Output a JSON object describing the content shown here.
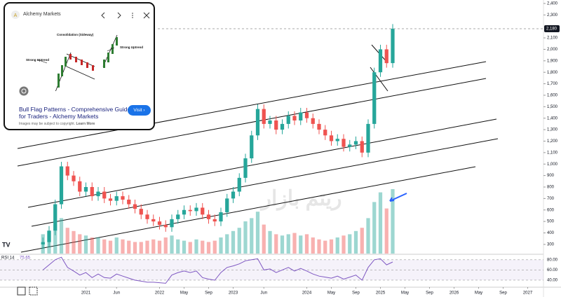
{
  "chart_data": {
    "type": "candlestick",
    "x": [
      "2020-06",
      "2020-07",
      "2020-08",
      "2020-09",
      "2020-10",
      "2020-11",
      "2020-12",
      "2021-01",
      "2021-02",
      "2021-03",
      "2021-04",
      "2021-05",
      "2021-06",
      "2021-07",
      "2021-08",
      "2021-09",
      "2021-10",
      "2021-11",
      "2021-12",
      "2022-01",
      "2022-02",
      "2022-03",
      "2022-04",
      "2022-05",
      "2022-06",
      "2022-07",
      "2022-08",
      "2022-09",
      "2022-10",
      "2022-11",
      "2022-12",
      "2023-01",
      "2023-02",
      "2023-03",
      "2023-04",
      "2023-05",
      "2023-06",
      "2023-07",
      "2023-08",
      "2023-09",
      "2023-10",
      "2023-11",
      "2023-12",
      "2024-01",
      "2024-02",
      "2024-03",
      "2024-04",
      "2024-05",
      "2024-06",
      "2024-07",
      "2024-08",
      "2024-09",
      "2024-10",
      "2024-11",
      "2024-12",
      "2025-01",
      "2025-02",
      "2025-03"
    ],
    "open": [
      300,
      320,
      420,
      650,
      980,
      900,
      850,
      760,
      800,
      720,
      760,
      700,
      680,
      720,
      690,
      650,
      610,
      560,
      520,
      500,
      470,
      450,
      520,
      560,
      600,
      590,
      620,
      560,
      520,
      500,
      580,
      700,
      760,
      880,
      1050,
      1250,
      1480,
      1350,
      1380,
      1300,
      1350,
      1420,
      1380,
      1450,
      1400,
      1350,
      1300,
      1250,
      1200,
      1220,
      1150,
      1170,
      1200,
      1100,
      1350,
      1800,
      2000,
      1880
    ],
    "high": [
      360,
      460,
      690,
      1020,
      1020,
      940,
      890,
      840,
      840,
      800,
      800,
      740,
      760,
      760,
      730,
      690,
      650,
      600,
      560,
      540,
      510,
      560,
      600,
      640,
      640,
      660,
      660,
      600,
      560,
      620,
      740,
      800,
      920,
      1090,
      1290,
      1520,
      1520,
      1420,
      1420,
      1390,
      1460,
      1460,
      1490,
      1490,
      1440,
      1390,
      1340,
      1290,
      1260,
      1260,
      1210,
      1240,
      1240,
      1390,
      1840,
      2040,
      2040,
      2220
    ],
    "low": [
      260,
      280,
      380,
      610,
      860,
      810,
      720,
      720,
      680,
      680,
      660,
      640,
      640,
      650,
      610,
      570,
      520,
      480,
      460,
      430,
      410,
      410,
      480,
      520,
      550,
      550,
      520,
      480,
      460,
      460,
      540,
      660,
      720,
      840,
      1010,
      1210,
      1310,
      1310,
      1260,
      1260,
      1310,
      1340,
      1340,
      1360,
      1310,
      1260,
      1210,
      1160,
      1160,
      1110,
      1110,
      1130,
      1060,
      1060,
      1310,
      1760,
      1840,
      1840
    ],
    "close": [
      320,
      420,
      650,
      980,
      900,
      850,
      760,
      800,
      720,
      760,
      700,
      680,
      720,
      690,
      650,
      610,
      560,
      520,
      500,
      470,
      450,
      520,
      560,
      600,
      590,
      620,
      560,
      520,
      500,
      580,
      700,
      760,
      880,
      1050,
      1250,
      1480,
      1350,
      1380,
      1300,
      1350,
      1420,
      1380,
      1450,
      1400,
      1350,
      1300,
      1250,
      1200,
      1220,
      1150,
      1170,
      1200,
      1100,
      1350,
      1800,
      2000,
      1880,
      2180
    ],
    "volume": [
      30,
      35,
      45,
      55,
      40,
      35,
      30,
      28,
      25,
      25,
      22,
      20,
      25,
      22,
      20,
      18,
      18,
      20,
      22,
      20,
      25,
      28,
      22,
      20,
      18,
      22,
      20,
      18,
      20,
      25,
      30,
      35,
      40,
      50,
      55,
      65,
      45,
      35,
      30,
      28,
      30,
      32,
      28,
      30,
      25,
      22,
      20,
      22,
      25,
      28,
      30,
      35,
      40,
      55,
      80,
      95,
      70,
      100
    ],
    "up_color": "#26a69a",
    "down_color": "#ef5350",
    "xlim": [
      "2019-11",
      "2027-03"
    ],
    "xticks": [
      {
        "value": "2021-01",
        "label": "2021"
      },
      {
        "value": "2021-06",
        "label": "Jun"
      },
      {
        "value": "2022-01",
        "label": "2022"
      },
      {
        "value": "2022-05",
        "label": "May"
      },
      {
        "value": "2022-09",
        "label": "Sep"
      },
      {
        "value": "2023-01",
        "label": "2023"
      },
      {
        "value": "2023-06",
        "label": "Jun"
      },
      {
        "value": "2024-01",
        "label": "2024"
      },
      {
        "value": "2024-05",
        "label": "May"
      },
      {
        "value": "2024-09",
        "label": "Sep"
      },
      {
        "value": "2025-01",
        "label": "2025"
      },
      {
        "value": "2025-05",
        "label": "May"
      },
      {
        "value": "2025-09",
        "label": "Sep"
      },
      {
        "value": "2026-01",
        "label": "2026"
      },
      {
        "value": "2026-05",
        "label": "May"
      },
      {
        "value": "2026-09",
        "label": "Sep"
      },
      {
        "value": "2027-01",
        "label": "2027"
      }
    ],
    "ylim": [
      220,
      2430
    ],
    "yticks": [
      300,
      400,
      500,
      600,
      700,
      800,
      900,
      {
        "value": 1000,
        "label": "1,000"
      },
      {
        "value": 1100,
        "label": "1,100"
      },
      {
        "value": 1200,
        "label": "1,200"
      },
      {
        "value": 1300,
        "label": "1,300"
      },
      {
        "value": 1400,
        "label": "1,400"
      },
      {
        "value": 1500,
        "label": "1,500"
      },
      {
        "value": 1600,
        "label": "1,600"
      },
      {
        "value": 1700,
        "label": "1,700"
      },
      {
        "value": 1800,
        "label": "1,800"
      },
      {
        "value": 1900,
        "label": "1,900"
      },
      {
        "value": 2000,
        "label": "2,000"
      },
      {
        "value": 2100,
        "label": "2,100"
      },
      {
        "value": 2300,
        "label": "2,300"
      },
      {
        "value": 2400,
        "label": "2,400"
      }
    ],
    "last_price": 2180,
    "last_price_label": "2,180",
    "watermark": "ریتم بازار",
    "rsi": {
      "label": "RSI 14",
      "color": "#7e57c2",
      "values": [
        60,
        70,
        80,
        85,
        65,
        58,
        50,
        55,
        45,
        52,
        45,
        44,
        52,
        48,
        44,
        40,
        38,
        36,
        36,
        35,
        34,
        50,
        55,
        58,
        55,
        58,
        45,
        42,
        40,
        55,
        65,
        68,
        72,
        78,
        80,
        82,
        60,
        62,
        55,
        60,
        65,
        58,
        63,
        58,
        52,
        48,
        46,
        44,
        48,
        42,
        46,
        50,
        40,
        65,
        80,
        82,
        70,
        75.65
      ],
      "ylim": [
        29,
        88
      ],
      "yticks": [
        {
          "value": 80,
          "label": "80.00"
        },
        {
          "value": 60,
          "label": "60.00"
        },
        {
          "value": 40,
          "label": "40.00"
        }
      ]
    }
  },
  "card": {
    "source": "Alchemy Markets",
    "consolidation": "Consolidation (Sideway)",
    "uptrend_left": "Strong Uptrend",
    "uptrend_right": "Strong Uptrend",
    "title": "Bull Flag Patterns - Comprehensive Guide for Traders - Alchemy Markets",
    "copyright": "Images may be subject to copyright.",
    "learn_more": "Learn More",
    "visit": "Visit"
  }
}
